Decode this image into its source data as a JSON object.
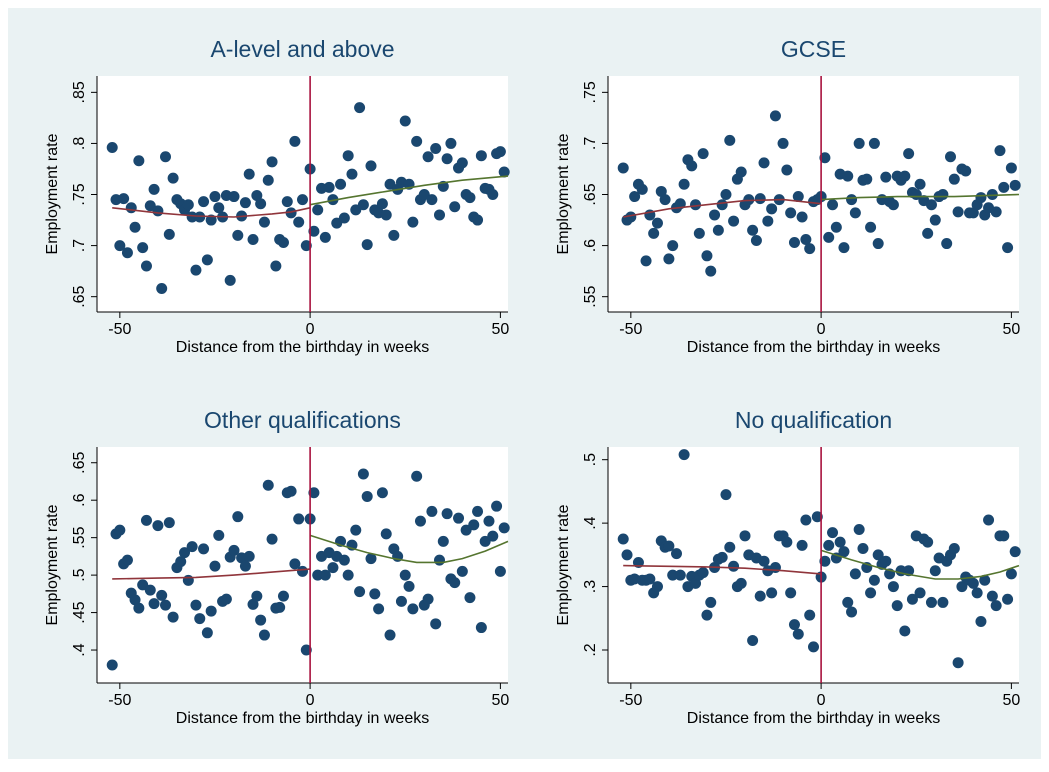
{
  "chart_data": [
    {
      "type": "scatter",
      "title": "A-level and above",
      "x_label": "Distance from the birthday in weeks",
      "y_label": "Employment rate",
      "xlim": [
        -56,
        52
      ],
      "xticks": [
        -50,
        0,
        50
      ],
      "ylim": [
        0.635,
        0.866
      ],
      "yticks": [
        {
          "value": 0.65,
          "label": ".65"
        },
        {
          "value": 0.7,
          "label": ".7"
        },
        {
          "value": 0.75,
          "label": ".75"
        },
        {
          "value": 0.8,
          "label": ".8"
        },
        {
          "value": 0.85,
          "label": ".85"
        }
      ],
      "xline": 0,
      "xline_color": "#a8123e",
      "color": "#1a476f",
      "x": [
        -52,
        -51,
        -50,
        -49,
        -48,
        -47,
        -46,
        -45,
        -44,
        -43,
        -42,
        -41,
        -40,
        -39,
        -38,
        -37,
        -36,
        -35,
        -34,
        -33,
        -32,
        -31,
        -30,
        -29,
        -28,
        -27,
        -26,
        -25,
        -24,
        -23,
        -22,
        -21,
        -20,
        -19,
        -18,
        -17,
        -16,
        -15,
        -14,
        -13,
        -12,
        -11,
        -10,
        -9,
        -8,
        -7,
        -6,
        -5,
        -4,
        -3,
        -2,
        -1,
        0,
        1,
        2,
        3,
        4,
        5,
        6,
        7,
        8,
        9,
        10,
        11,
        12,
        13,
        14,
        15,
        16,
        17,
        18,
        19,
        20,
        21,
        22,
        23,
        24,
        25,
        26,
        27,
        28,
        29,
        30,
        31,
        32,
        33,
        34,
        35,
        36,
        37,
        38,
        39,
        40,
        41,
        42,
        43,
        44,
        45,
        46,
        47,
        48,
        49,
        50,
        51
      ],
      "values": [
        0.796,
        0.745,
        0.7,
        0.746,
        0.693,
        0.737,
        0.718,
        0.783,
        0.698,
        0.68,
        0.739,
        0.755,
        0.734,
        0.658,
        0.787,
        0.711,
        0.766,
        0.745,
        0.741,
        0.735,
        0.74,
        0.728,
        0.676,
        0.728,
        0.743,
        0.686,
        0.725,
        0.748,
        0.737,
        0.728,
        0.749,
        0.666,
        0.748,
        0.71,
        0.729,
        0.742,
        0.77,
        0.706,
        0.749,
        0.741,
        0.723,
        0.764,
        0.782,
        0.68,
        0.706,
        0.703,
        0.743,
        0.732,
        0.802,
        0.723,
        0.745,
        0.7,
        0.775,
        0.714,
        0.735,
        0.756,
        0.708,
        0.757,
        0.745,
        0.722,
        0.76,
        0.727,
        0.788,
        0.77,
        0.735,
        0.835,
        0.74,
        0.701,
        0.778,
        0.735,
        0.732,
        0.741,
        0.73,
        0.76,
        0.71,
        0.755,
        0.762,
        0.822,
        0.76,
        0.723,
        0.802,
        0.745,
        0.75,
        0.787,
        0.745,
        0.795,
        0.73,
        0.758,
        0.785,
        0.8,
        0.738,
        0.776,
        0.781,
        0.75,
        0.747,
        0.728,
        0.725,
        0.788,
        0.756,
        0.755,
        0.75,
        0.79,
        0.792,
        0.772
      ],
      "fits": [
        {
          "color": "#90353b",
          "x": [
            -52,
            -40,
            -30,
            -20,
            -10,
            -5,
            0
          ],
          "values": [
            0.737,
            0.732,
            0.729,
            0.728,
            0.731,
            0.733,
            0.737
          ]
        },
        {
          "color": "#55752f",
          "x": [
            0,
            10,
            20,
            30,
            40,
            52
          ],
          "values": [
            0.74,
            0.747,
            0.753,
            0.759,
            0.764,
            0.768
          ]
        }
      ]
    },
    {
      "type": "scatter",
      "title": "GCSE",
      "x_label": "Distance from the birthday in weeks",
      "y_label": "Employment rate",
      "xlim": [
        -56,
        52
      ],
      "xticks": [
        -50,
        0,
        50
      ],
      "ylim": [
        0.535,
        0.766
      ],
      "yticks": [
        {
          "value": 0.55,
          "label": ".55"
        },
        {
          "value": 0.6,
          "label": ".6"
        },
        {
          "value": 0.65,
          "label": ".65"
        },
        {
          "value": 0.7,
          "label": ".7"
        },
        {
          "value": 0.75,
          "label": ".75"
        }
      ],
      "xline": 0,
      "xline_color": "#a8123e",
      "color": "#1a476f",
      "x": [
        -52,
        -51,
        -50,
        -49,
        -48,
        -47,
        -46,
        -45,
        -44,
        -43,
        -42,
        -41,
        -40,
        -39,
        -38,
        -37,
        -36,
        -35,
        -34,
        -33,
        -32,
        -31,
        -30,
        -29,
        -28,
        -27,
        -26,
        -25,
        -24,
        -23,
        -22,
        -21,
        -20,
        -19,
        -18,
        -17,
        -16,
        -15,
        -14,
        -13,
        -12,
        -11,
        -10,
        -9,
        -8,
        -7,
        -6,
        -5,
        -4,
        -3,
        -2,
        -1,
        0,
        1,
        2,
        3,
        4,
        5,
        6,
        7,
        8,
        9,
        10,
        11,
        12,
        13,
        14,
        15,
        16,
        17,
        18,
        19,
        20,
        21,
        22,
        23,
        24,
        25,
        26,
        27,
        28,
        29,
        30,
        31,
        32,
        33,
        34,
        35,
        36,
        37,
        38,
        39,
        40,
        41,
        42,
        43,
        44,
        45,
        46,
        47,
        48,
        49,
        50,
        51
      ],
      "values": [
        0.676,
        0.625,
        0.628,
        0.648,
        0.66,
        0.655,
        0.585,
        0.63,
        0.612,
        0.622,
        0.653,
        0.645,
        0.587,
        0.6,
        0.637,
        0.641,
        0.66,
        0.684,
        0.678,
        0.64,
        0.612,
        0.69,
        0.59,
        0.575,
        0.63,
        0.615,
        0.64,
        0.65,
        0.703,
        0.624,
        0.665,
        0.672,
        0.64,
        0.645,
        0.615,
        0.605,
        0.646,
        0.681,
        0.624,
        0.636,
        0.727,
        0.645,
        0.7,
        0.674,
        0.632,
        0.603,
        0.648,
        0.628,
        0.606,
        0.597,
        0.643,
        0.645,
        0.648,
        0.686,
        0.608,
        0.64,
        0.618,
        0.67,
        0.598,
        0.668,
        0.645,
        0.632,
        0.7,
        0.664,
        0.665,
        0.618,
        0.7,
        0.602,
        0.645,
        0.667,
        0.643,
        0.64,
        0.668,
        0.664,
        0.668,
        0.69,
        0.652,
        0.65,
        0.66,
        0.644,
        0.612,
        0.64,
        0.625,
        0.648,
        0.65,
        0.602,
        0.687,
        0.665,
        0.633,
        0.675,
        0.673,
        0.632,
        0.632,
        0.64,
        0.647,
        0.63,
        0.637,
        0.65,
        0.633,
        0.693,
        0.657,
        0.598,
        0.676,
        0.659
      ],
      "fits": [
        {
          "color": "#90353b",
          "x": [
            -52,
            -40,
            -30,
            -20,
            -10,
            0
          ],
          "values": [
            0.628,
            0.636,
            0.64,
            0.644,
            0.645,
            0.641
          ]
        },
        {
          "color": "#55752f",
          "x": [
            0,
            10,
            20,
            35,
            52
          ],
          "values": [
            0.645,
            0.647,
            0.648,
            0.648,
            0.65
          ]
        }
      ]
    },
    {
      "type": "scatter",
      "title": "Other qualifications",
      "x_label": "Distance from the birthday in weeks",
      "y_label": "Employment rate",
      "xlim": [
        -56,
        52
      ],
      "xticks": [
        -50,
        0,
        50
      ],
      "ylim": [
        0.356,
        0.671
      ],
      "yticks": [
        {
          "value": 0.4,
          "label": ".4"
        },
        {
          "value": 0.45,
          "label": ".45"
        },
        {
          "value": 0.5,
          "label": ".5"
        },
        {
          "value": 0.55,
          "label": ".55"
        },
        {
          "value": 0.6,
          "label": ".6"
        },
        {
          "value": 0.65,
          "label": ".65"
        }
      ],
      "xline": 0,
      "xline_color": "#a8123e",
      "color": "#1a476f",
      "x": [
        -52,
        -51,
        -50,
        -49,
        -48,
        -47,
        -46,
        -45,
        -44,
        -43,
        -42,
        -41,
        -40,
        -39,
        -38,
        -37,
        -36,
        -35,
        -34,
        -33,
        -32,
        -31,
        -30,
        -29,
        -28,
        -27,
        -26,
        -25,
        -24,
        -23,
        -22,
        -21,
        -20,
        -19,
        -18,
        -17,
        -16,
        -15,
        -14,
        -13,
        -12,
        -11,
        -10,
        -9,
        -8,
        -7,
        -6,
        -5,
        -4,
        -3,
        -2,
        -1,
        0,
        1,
        2,
        3,
        4,
        5,
        6,
        7,
        8,
        9,
        10,
        11,
        12,
        13,
        14,
        15,
        16,
        17,
        18,
        19,
        20,
        21,
        22,
        23,
        24,
        25,
        26,
        27,
        28,
        29,
        30,
        31,
        32,
        33,
        34,
        35,
        36,
        37,
        38,
        39,
        40,
        41,
        42,
        43,
        44,
        45,
        46,
        47,
        48,
        49,
        50,
        51
      ],
      "values": [
        0.38,
        0.555,
        0.56,
        0.515,
        0.52,
        0.476,
        0.467,
        0.456,
        0.487,
        0.573,
        0.48,
        0.462,
        0.566,
        0.473,
        0.46,
        0.57,
        0.444,
        0.51,
        0.518,
        0.53,
        0.493,
        0.538,
        0.46,
        0.442,
        0.535,
        0.423,
        0.452,
        0.512,
        0.553,
        0.465,
        0.468,
        0.524,
        0.533,
        0.578,
        0.523,
        0.512,
        0.525,
        0.461,
        0.472,
        0.44,
        0.42,
        0.62,
        0.548,
        0.456,
        0.457,
        0.472,
        0.61,
        0.612,
        0.515,
        0.575,
        0.505,
        0.4,
        0.575,
        0.61,
        0.5,
        0.525,
        0.5,
        0.53,
        0.51,
        0.525,
        0.545,
        0.52,
        0.5,
        0.54,
        0.56,
        0.478,
        0.635,
        0.605,
        0.522,
        0.475,
        0.455,
        0.61,
        0.555,
        0.42,
        0.535,
        0.525,
        0.465,
        0.5,
        0.485,
        0.455,
        0.632,
        0.572,
        0.46,
        0.468,
        0.585,
        0.435,
        0.52,
        0.545,
        0.582,
        0.495,
        0.49,
        0.576,
        0.505,
        0.56,
        0.47,
        0.567,
        0.585,
        0.43,
        0.545,
        0.572,
        0.552,
        0.592,
        0.505,
        0.563
      ],
      "fits": [
        {
          "color": "#90353b",
          "x": [
            -52,
            -40,
            -30,
            -20,
            -10,
            0
          ],
          "values": [
            0.495,
            0.496,
            0.497,
            0.5,
            0.504,
            0.508
          ]
        },
        {
          "color": "#55752f",
          "x": [
            0,
            8,
            15,
            22,
            28,
            35,
            40,
            46,
            52
          ],
          "values": [
            0.553,
            0.54,
            0.53,
            0.522,
            0.517,
            0.517,
            0.522,
            0.532,
            0.545
          ]
        }
      ]
    },
    {
      "type": "scatter",
      "title": "No qualification",
      "x_label": "Distance from the birthday in weeks",
      "y_label": "Employment rate",
      "xlim": [
        -56,
        52
      ],
      "xticks": [
        -50,
        0,
        50
      ],
      "ylim": [
        0.148,
        0.52
      ],
      "yticks": [
        {
          "value": 0.2,
          "label": ".2"
        },
        {
          "value": 0.3,
          "label": ".3"
        },
        {
          "value": 0.4,
          "label": ".4"
        },
        {
          "value": 0.5,
          "label": ".5"
        }
      ],
      "xline": 0,
      "xline_color": "#a8123e",
      "color": "#1a476f",
      "x": [
        -52,
        -51,
        -50,
        -49,
        -48,
        -47,
        -46,
        -45,
        -44,
        -43,
        -42,
        -41,
        -40,
        -39,
        -38,
        -37,
        -36,
        -35,
        -34,
        -33,
        -32,
        -31,
        -30,
        -29,
        -28,
        -27,
        -26,
        -25,
        -24,
        -23,
        -22,
        -21,
        -20,
        -19,
        -18,
        -17,
        -16,
        -15,
        -14,
        -13,
        -12,
        -11,
        -10,
        -9,
        -8,
        -7,
        -6,
        -5,
        -4,
        -3,
        -2,
        -1,
        0,
        1,
        2,
        3,
        4,
        5,
        6,
        7,
        8,
        9,
        10,
        11,
        12,
        13,
        14,
        15,
        16,
        17,
        18,
        19,
        20,
        21,
        22,
        23,
        24,
        25,
        26,
        27,
        28,
        29,
        30,
        31,
        32,
        33,
        34,
        35,
        36,
        37,
        38,
        39,
        40,
        41,
        42,
        43,
        44,
        45,
        46,
        47,
        48,
        49,
        50,
        51
      ],
      "values": [
        0.375,
        0.35,
        0.31,
        0.312,
        0.338,
        0.31,
        0.31,
        0.312,
        0.29,
        0.3,
        0.372,
        0.362,
        0.364,
        0.318,
        0.352,
        0.318,
        0.508,
        0.3,
        0.316,
        0.305,
        0.318,
        0.322,
        0.255,
        0.275,
        0.33,
        0.343,
        0.346,
        0.445,
        0.362,
        0.332,
        0.3,
        0.305,
        0.38,
        0.35,
        0.215,
        0.345,
        0.285,
        0.34,
        0.325,
        0.29,
        0.33,
        0.38,
        0.38,
        0.37,
        0.29,
        0.24,
        0.225,
        0.365,
        0.405,
        0.255,
        0.205,
        0.41,
        0.315,
        0.34,
        0.365,
        0.385,
        0.345,
        0.37,
        0.355,
        0.275,
        0.26,
        0.32,
        0.39,
        0.36,
        0.33,
        0.29,
        0.31,
        0.35,
        0.335,
        0.34,
        0.32,
        0.3,
        0.27,
        0.325,
        0.23,
        0.325,
        0.28,
        0.38,
        0.29,
        0.375,
        0.37,
        0.275,
        0.325,
        0.345,
        0.275,
        0.34,
        0.35,
        0.36,
        0.18,
        0.3,
        0.315,
        0.31,
        0.305,
        0.29,
        0.245,
        0.31,
        0.405,
        0.285,
        0.27,
        0.38,
        0.38,
        0.28,
        0.32,
        0.355
      ],
      "fits": [
        {
          "color": "#90353b",
          "x": [
            -52,
            -40,
            -30,
            -20,
            -10,
            0
          ],
          "values": [
            0.333,
            0.332,
            0.331,
            0.329,
            0.325,
            0.32
          ]
        },
        {
          "color": "#55752f",
          "x": [
            0,
            8,
            15,
            22,
            30,
            36,
            42,
            47,
            52
          ],
          "values": [
            0.357,
            0.342,
            0.33,
            0.32,
            0.312,
            0.312,
            0.316,
            0.323,
            0.333
          ]
        }
      ]
    }
  ]
}
